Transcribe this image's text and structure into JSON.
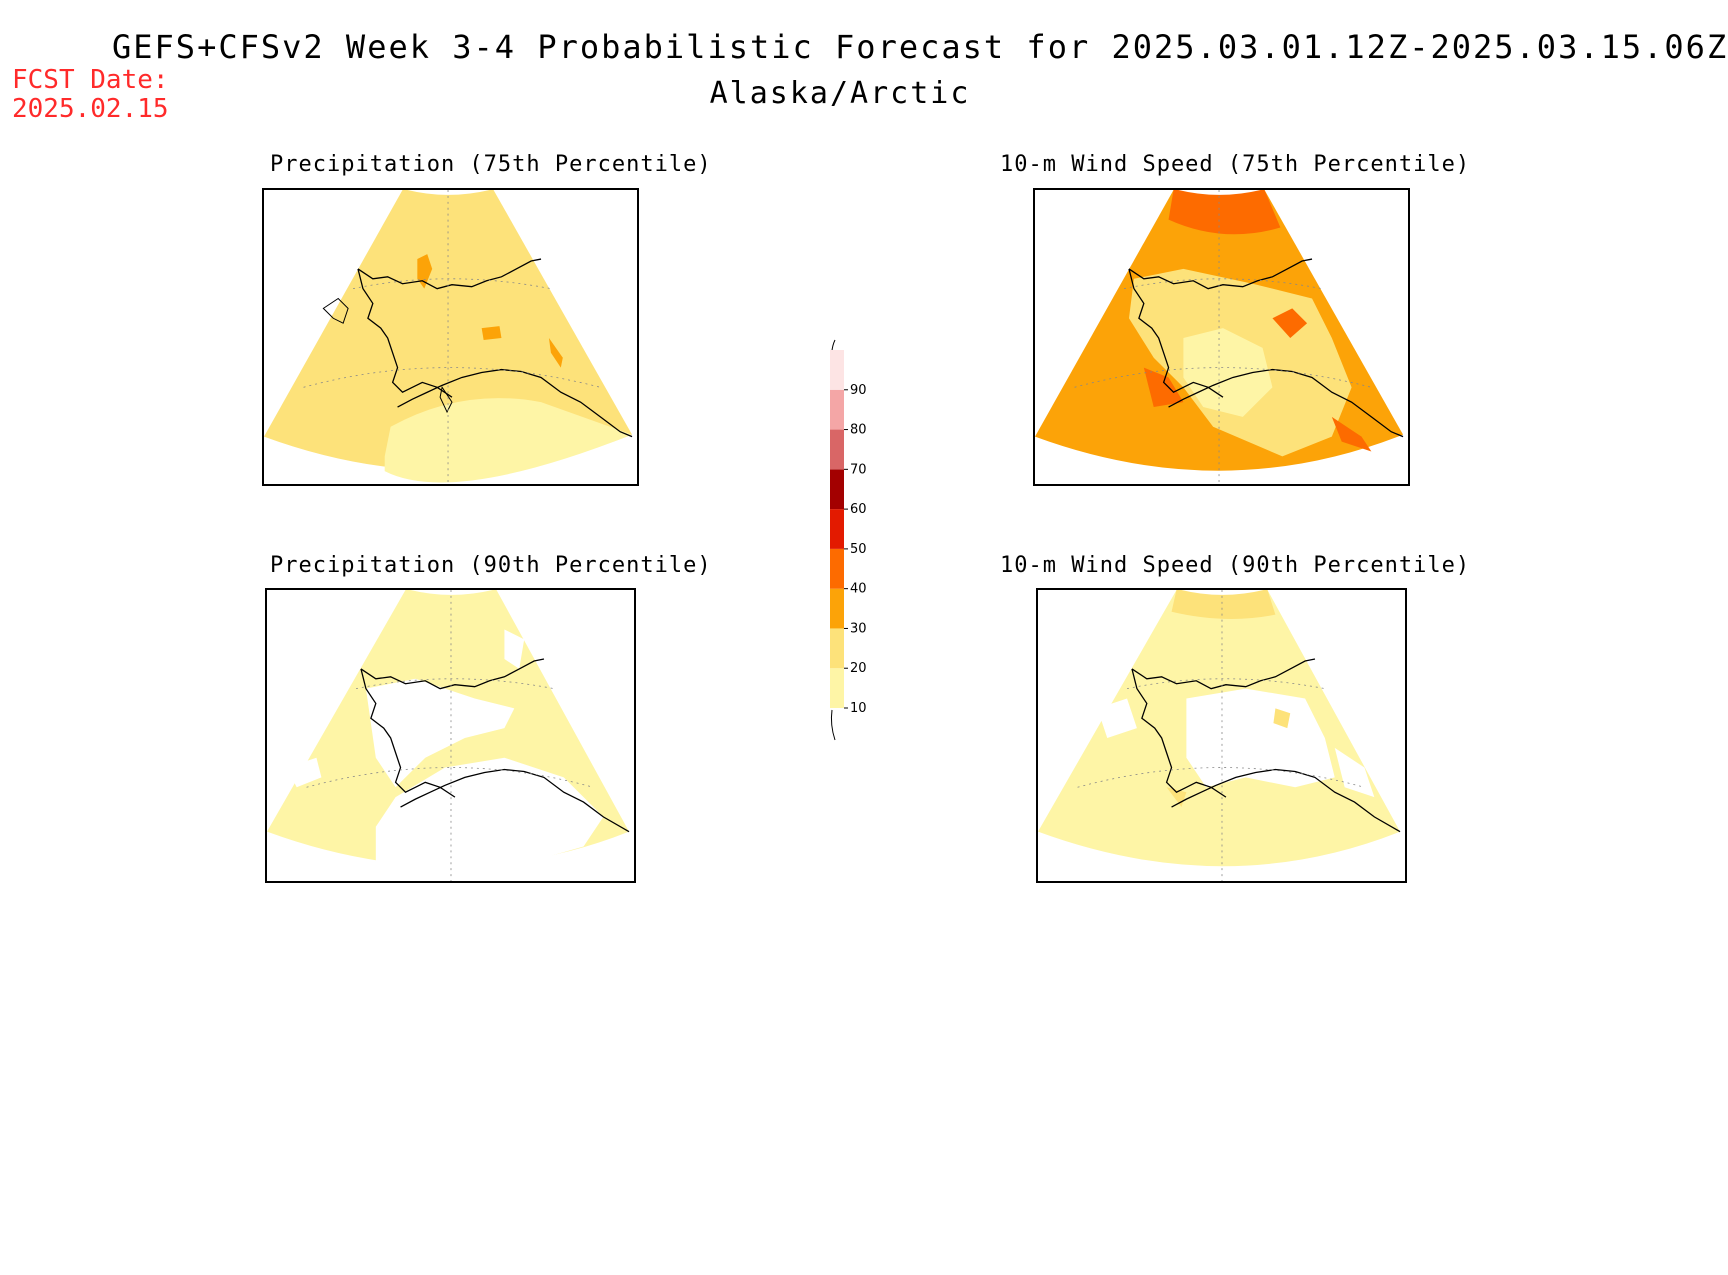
{
  "header": {
    "title": "GEFS+CFSv2 Week 3-4 Probabilistic Forecast for 2025.03.01.12Z-2025.03.15.06Z",
    "region": "Alaska/Arctic",
    "fcst_label": "FCST Date:",
    "fcst_date": "2025.02.15"
  },
  "panels": [
    {
      "id": "precip-75",
      "title": "Precipitation (75th Percentile)",
      "dominant_prob": "20-30",
      "palette_fill": "#fde27a"
    },
    {
      "id": "wind-75",
      "title": "10-m Wind Speed (75th Percentile)",
      "dominant_prob": "30-40",
      "palette_fill": "#fca308"
    },
    {
      "id": "precip-90",
      "title": "Precipitation (90th Percentile)",
      "dominant_prob": "10-20",
      "palette_fill": "#fef5a6"
    },
    {
      "id": "wind-90",
      "title": "10-m Wind Speed (90th Percentile)",
      "dominant_prob": "10-20",
      "palette_fill": "#fef5a6"
    }
  ],
  "colorbar": {
    "ticks": [
      "10",
      "20",
      "30",
      "40",
      "50",
      "60",
      "70",
      "80",
      "90"
    ],
    "colors": [
      "#fef5a6",
      "#fde27a",
      "#fca308",
      "#fd6b00",
      "#e31a00",
      "#a30000",
      "#d96666",
      "#f4a6a6",
      "#fde4e4"
    ]
  }
}
